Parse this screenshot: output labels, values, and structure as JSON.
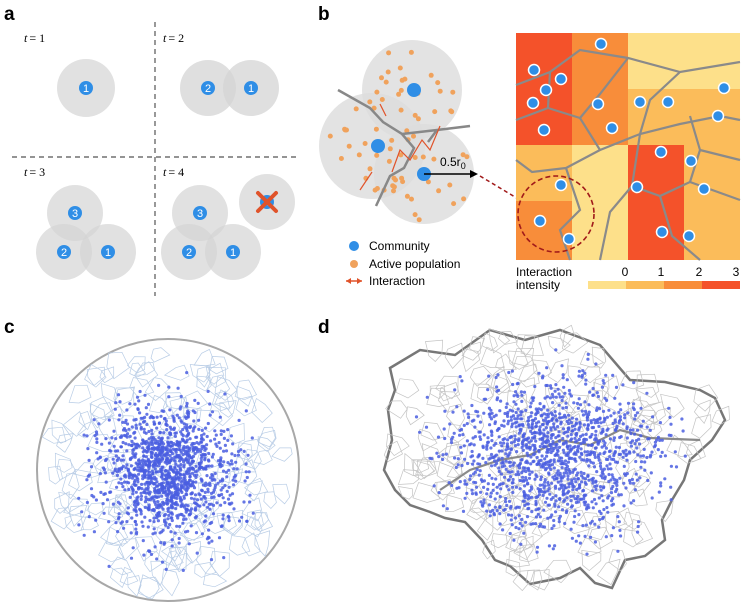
{
  "panels": {
    "a": {
      "label": "a",
      "steps": [
        {
          "t_var": "t",
          "t_val": "= 1",
          "communities": [
            "1"
          ]
        },
        {
          "t_var": "t",
          "t_val": "= 2",
          "communities": [
            "2",
            "1"
          ]
        },
        {
          "t_var": "t",
          "t_val": "= 3",
          "communities": [
            "3",
            "2",
            "1"
          ]
        },
        {
          "t_var": "t",
          "t_val": "= 4",
          "communities": [
            "3",
            "2",
            "1",
            "4"
          ]
        }
      ]
    },
    "b": {
      "label": "b",
      "radius_label": "0.5r",
      "radius_sub": "0",
      "legend": {
        "community": "Community",
        "active_population": "Active population",
        "interaction": "Interaction"
      },
      "intensity": {
        "title_line1": "Interaction",
        "title_line2": "intensity",
        "ticks": [
          "0",
          "1",
          "2",
          "3"
        ]
      }
    },
    "c": {
      "label": "c"
    },
    "d": {
      "label": "d"
    }
  },
  "colors": {
    "community": "#2f8ee6",
    "active_population": "#f0a25c",
    "interaction": "#e0532a",
    "circle_fill": "#dcdcdc",
    "voronoi_edge": "#8a8a8a",
    "scatter_dot": "#4a5ee0",
    "intensity_scale": [
      "#fde08a",
      "#fbbc5a",
      "#f88d3a",
      "#f4522a"
    ]
  }
}
